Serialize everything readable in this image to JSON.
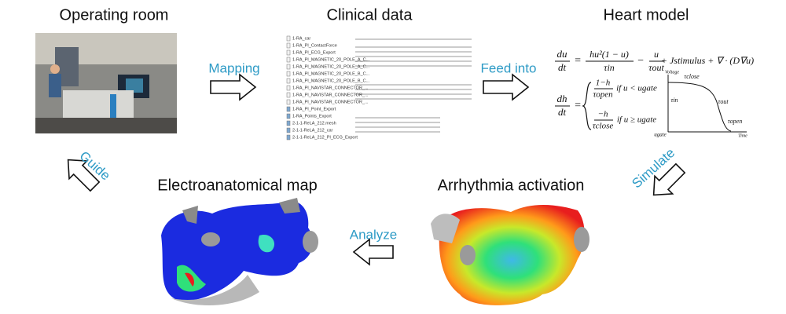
{
  "nodes": [
    {
      "label": "Operating room"
    },
    {
      "label": "Clinical data"
    },
    {
      "label": "Heart model"
    },
    {
      "label": "Arrhythmia activation"
    },
    {
      "label": "Electroanatomical map"
    }
  ],
  "edges": [
    {
      "label": "Mapping"
    },
    {
      "label": "Feed into"
    },
    {
      "label": "Simulate"
    },
    {
      "label": "Analyze"
    },
    {
      "label": "Guide"
    }
  ],
  "clinical_files": [
    "1-RA_car",
    "1-RA_PI_ContactForce",
    "1-RA_PI_ECG_Export",
    "1-RA_PI_MAGNETIC_20_POLE_A_C...",
    "1-RA_PI_MAGNETIC_20_POLE_A_C...",
    "1-RA_PI_MAGNETIC_20_POLE_B_C...",
    "1-RA_PI_MAGNETIC_20_POLE_B_C...",
    "1-RA_PI_NAVISTAR_CONNECTOR_...",
    "1-RA_PI_NAVISTAR_CONNECTOR_...",
    "1-RA_PI_NAVISTAR_CONNECTOR_...",
    "1-RA_PI_Point_Export",
    "1-RA_Points_Export",
    "2-1-1-ReLA_212.mesh",
    "2-1-1-ReLA_212_car",
    "2-1-1-ReLA_212_PI_ECG_Export"
  ],
  "equations": {
    "eq1": {
      "lhs_num": "du",
      "lhs_den": "dt",
      "eq": "=",
      "t1_num": "hu²(1 − u)",
      "t1_den": "τin",
      "minus": "−",
      "t2_num": "u",
      "t2_den": "τout",
      "rest": "+ Jstimulus + ∇ · (D∇u)"
    },
    "eq2": {
      "lhs_num": "dh",
      "lhs_den": "dt",
      "eq": "=",
      "c1_num": "1−h",
      "c1_den": "τopen",
      "c1_cond": "if u < ugate",
      "c2_num": "−h",
      "c2_den": "τclose",
      "c2_cond": "if u ≥ ugate"
    },
    "graph": {
      "y_label": "Voltage",
      "x_label": "Time",
      "tau_close": "τclose",
      "tau_in": "τin",
      "tau_out": "τout",
      "tau_open": "τopen",
      "u_gate": "ugate"
    }
  }
}
